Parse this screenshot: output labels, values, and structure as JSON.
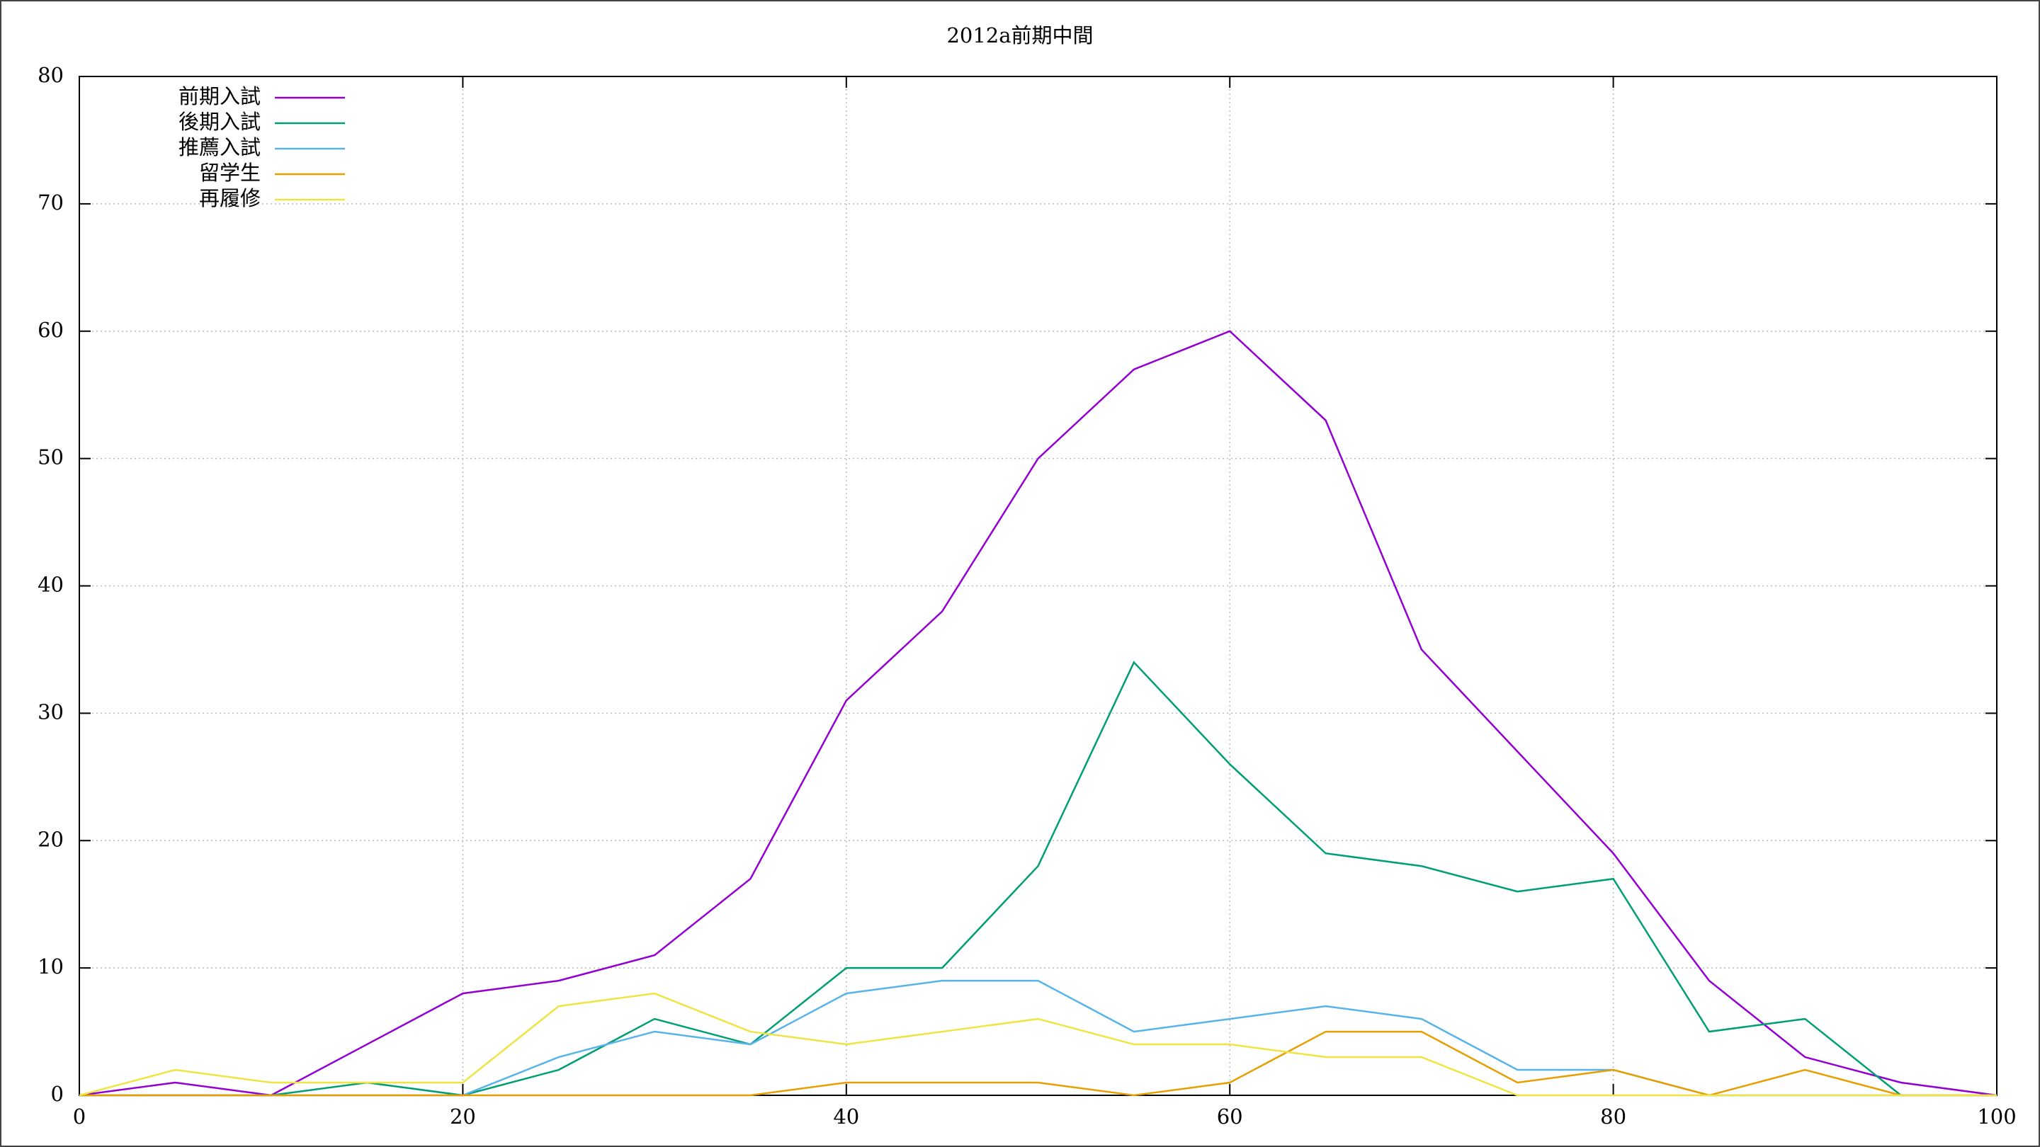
{
  "chart_data": {
    "type": "line",
    "title": "2012a前期中間",
    "x": [
      0,
      5,
      10,
      15,
      20,
      25,
      30,
      35,
      40,
      45,
      50,
      55,
      60,
      65,
      70,
      75,
      80,
      85,
      90,
      95,
      100
    ],
    "series": [
      {
        "name": "前期入試",
        "color": "#9400d3",
        "values": [
          0,
          1,
          0,
          4,
          8,
          9,
          11,
          17,
          31,
          38,
          50,
          57,
          60,
          53,
          35,
          27,
          19,
          9,
          3,
          1,
          0
        ]
      },
      {
        "name": "後期入試",
        "color": "#009e73",
        "values": [
          0,
          0,
          0,
          1,
          0,
          2,
          6,
          4,
          10,
          10,
          18,
          34,
          26,
          19,
          18,
          16,
          17,
          5,
          6,
          0,
          0
        ]
      },
      {
        "name": "推薦入試",
        "color": "#56b4e9",
        "values": [
          0,
          0,
          0,
          0,
          0,
          3,
          5,
          4,
          8,
          9,
          9,
          5,
          6,
          7,
          6,
          2,
          2,
          0,
          0,
          0,
          0
        ]
      },
      {
        "name": "留学生",
        "color": "#e69f00",
        "values": [
          0,
          0,
          0,
          0,
          0,
          0,
          0,
          0,
          1,
          1,
          1,
          0,
          1,
          5,
          5,
          1,
          2,
          0,
          2,
          0,
          0
        ]
      },
      {
        "name": "再履修",
        "color": "#f0e442",
        "values": [
          0,
          2,
          1,
          1,
          1,
          7,
          8,
          5,
          4,
          5,
          6,
          4,
          4,
          3,
          3,
          0,
          0,
          0,
          0,
          0,
          0
        ]
      }
    ],
    "xlim": [
      0,
      100
    ],
    "xticks": [
      0,
      20,
      40,
      60,
      80,
      100
    ],
    "ylim": [
      0,
      80
    ],
    "yticks": [
      0,
      10,
      20,
      30,
      40,
      50,
      60,
      70,
      80
    ],
    "grid": true,
    "legend": "top-left"
  }
}
